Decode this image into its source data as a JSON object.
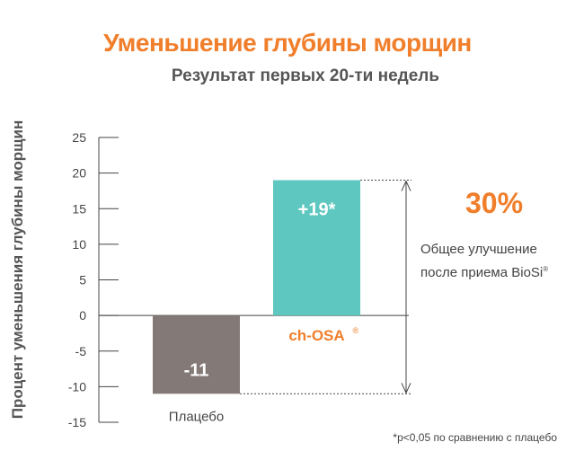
{
  "chart_data": {
    "type": "bar",
    "title": "Уменьшение глубины морщин",
    "subtitle": "Результат первых 20-ти недель",
    "ylabel": "Процент уменьшения глубины морщин",
    "ylim": [
      -15,
      25
    ],
    "yticks": [
      "25",
      "20",
      "15",
      "10",
      "5",
      "0",
      "-5",
      "-10",
      "-15"
    ],
    "categories": [
      "Плацебо",
      "ch-OSA"
    ],
    "category_marks": [
      "",
      "®"
    ],
    "values": [
      -11,
      19
    ],
    "data_labels": [
      "-11",
      "+19*"
    ],
    "bar_colors": [
      "#837a77",
      "#5ec7bf"
    ],
    "category_label_colors": [
      "#444444",
      "#f07e2a"
    ],
    "annotation": {
      "value": "30%",
      "line1": "Общее улучшение",
      "line2": "после приема BioSi",
      "mark": "®"
    },
    "footnote": "*p<0,05 по сравнению с плацебо"
  },
  "colors": {
    "accent": "#f07e2a",
    "axis": "#444444"
  }
}
